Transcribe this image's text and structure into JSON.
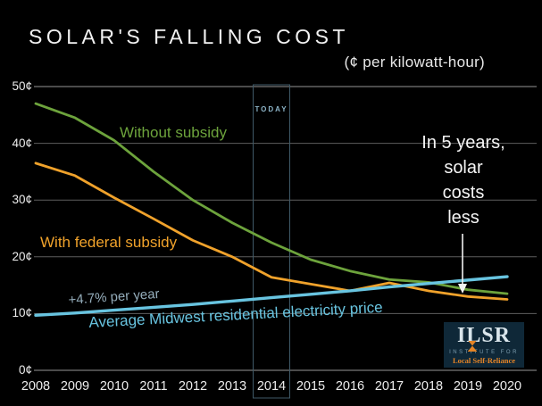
{
  "today_label": "TODAY",
  "growth_label": "+4.7% per year",
  "annotation_lines": [
    "In 5 years,",
    "solar",
    "costs",
    "less"
  ],
  "logo": {
    "name": "ILSR",
    "line1": "INSTITUTE FOR",
    "line2": "Local Self-Reliance"
  },
  "colors": {
    "background": "#000000",
    "title_text": "#f2f2f2",
    "axis_text": "#ededed",
    "grid": "#5e5e5e",
    "grid_edge": "#969696",
    "without_subsidy": "#6da33c",
    "with_subsidy": "#f0a22b",
    "electricity": "#68c4e0",
    "growth_label_text": "#94acba",
    "today_box": "#3f5a68",
    "today_text": "#8db5c8",
    "annotation_text": "#f5f5f5",
    "arrow": "#f2f2f2",
    "logo_bg": "#0f2838",
    "logo_text": "#d9e5eb",
    "logo_small_text": "#7b9cae",
    "logo_accent": "#e58426"
  },
  "chart_data": {
    "type": "line",
    "title": "SOLAR'S FALLING COST",
    "subtitle": "(¢ per kilowatt-hour)",
    "x": [
      2008,
      2009,
      2010,
      2011,
      2012,
      2013,
      2014,
      2015,
      2016,
      2017,
      2018,
      2019,
      2020
    ],
    "series": [
      {
        "key": "without-subsidy",
        "name": "Without subsidy",
        "color": "#6da33c",
        "width": 2.8,
        "values": [
          47,
          44.5,
          40.5,
          35,
          30,
          26,
          22.5,
          19.5,
          17.5,
          16,
          15.5,
          14.2,
          13.5
        ]
      },
      {
        "key": "with-federal-subsidy",
        "name": "With federal subsidy",
        "color": "#f0a22b",
        "width": 2.8,
        "values": [
          36.5,
          34.3,
          30.4,
          26.7,
          22.9,
          20,
          16.4,
          15.2,
          14,
          15.4,
          14,
          13,
          12.5
        ]
      },
      {
        "key": "electricity-price",
        "name": "Average Midwest residential electricity price",
        "color": "#68c4e0",
        "width": 3.4,
        "values": [
          9.7,
          10.1,
          10.6,
          11.1,
          11.6,
          12.2,
          12.8,
          13.4,
          14,
          14.7,
          15.3,
          15.9,
          16.5
        ]
      }
    ],
    "ylim": [
      0,
      50
    ],
    "yticks": [
      50,
      40,
      30,
      20,
      10,
      0
    ],
    "ytick_suffix": "¢",
    "xlabel": "",
    "ylabel": "¢ per kilowatt-hour",
    "grid": true,
    "legend_position": "inline-labels",
    "today_year": 2014,
    "annotation": "In 5 years, solar costs less",
    "electricity_growth_rate": "+4.7% per year"
  }
}
